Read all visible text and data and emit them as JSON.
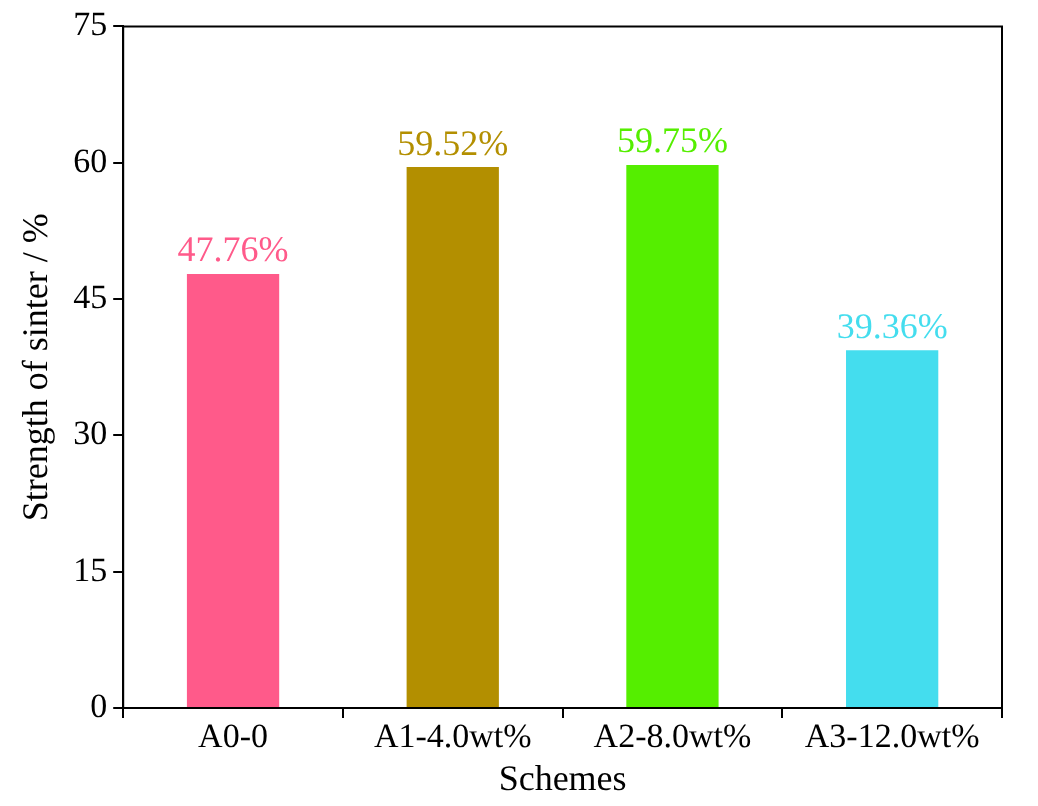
{
  "chart_data": {
    "type": "bar",
    "xlabel": "Schemes",
    "ylabel": "Strength of sinter / %",
    "categories": [
      "A0-0",
      "A1-4.0wt%",
      "A2-8.0wt%",
      "A3-12.0wt%"
    ],
    "values": [
      47.76,
      59.52,
      59.75,
      39.36
    ],
    "colors": [
      "#ff5a8a",
      "#b38f00",
      "#55ee00",
      "#44ddee"
    ],
    "value_labels": [
      "47.76%",
      "59.52%",
      "59.75%",
      "39.36%"
    ],
    "ylim": [
      0,
      75
    ],
    "yticks": [
      0,
      15,
      30,
      45,
      60,
      75
    ],
    "grid": false,
    "legend": false
  }
}
